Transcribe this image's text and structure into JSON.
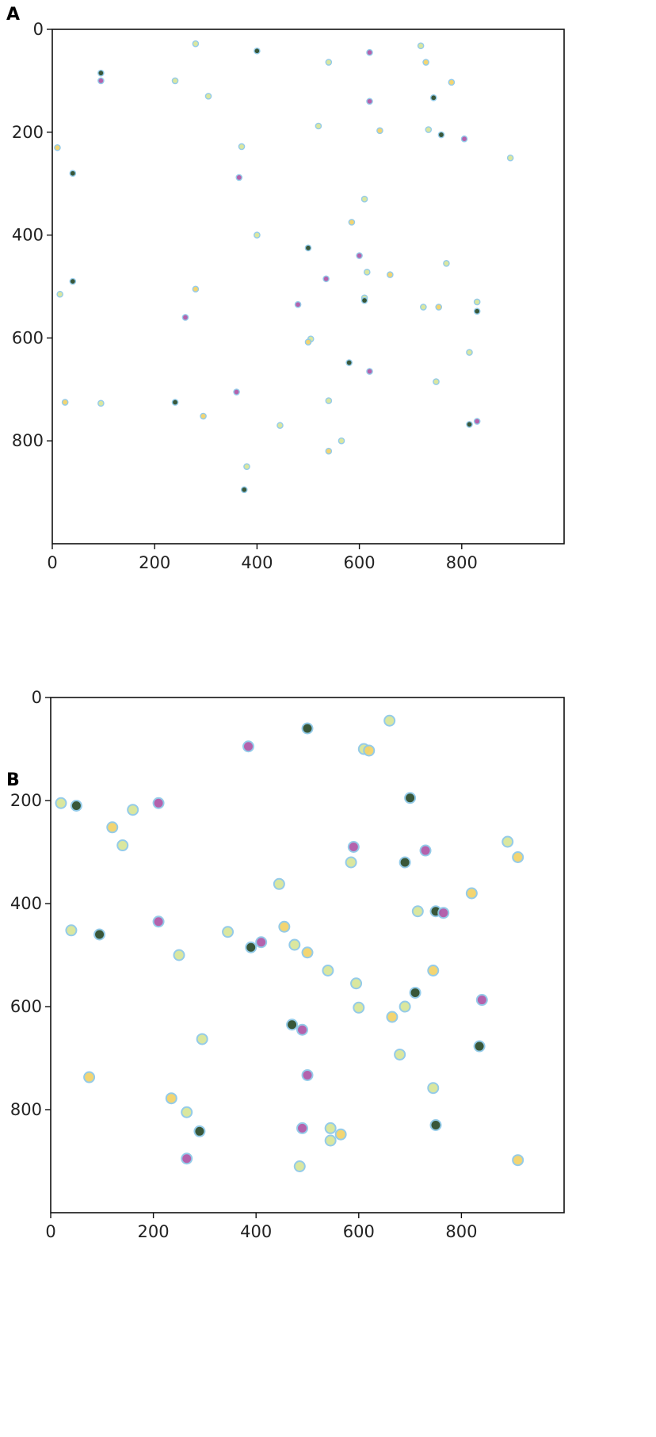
{
  "chart_data": [
    {
      "panel": "A",
      "type": "scatter",
      "title": "",
      "xlabel": "",
      "ylabel": "",
      "xlim": [
        0,
        1000
      ],
      "ylim": [
        1000,
        0
      ],
      "y_inverted": true,
      "xticks": [
        "0",
        "200",
        "400",
        "600",
        "800"
      ],
      "yticks": [
        "0",
        "200",
        "400",
        "600",
        "800"
      ],
      "grid": false,
      "points": [
        [
          280,
          28
        ],
        [
          400,
          42
        ],
        [
          620,
          45
        ],
        [
          720,
          32
        ],
        [
          730,
          64
        ],
        [
          540,
          64
        ],
        [
          95,
          85
        ],
        [
          95,
          100
        ],
        [
          240,
          100
        ],
        [
          780,
          103
        ],
        [
          305,
          130
        ],
        [
          745,
          133
        ],
        [
          620,
          140
        ],
        [
          520,
          188
        ],
        [
          640,
          197
        ],
        [
          735,
          195
        ],
        [
          760,
          205
        ],
        [
          805,
          213
        ],
        [
          895,
          250
        ],
        [
          10,
          230
        ],
        [
          370,
          228
        ],
        [
          40,
          280
        ],
        [
          365,
          288
        ],
        [
          610,
          330
        ],
        [
          585,
          375
        ],
        [
          400,
          400
        ],
        [
          500,
          425
        ],
        [
          600,
          440
        ],
        [
          615,
          472
        ],
        [
          660,
          477
        ],
        [
          770,
          455
        ],
        [
          40,
          490
        ],
        [
          535,
          485
        ],
        [
          15,
          515
        ],
        [
          280,
          505
        ],
        [
          610,
          522
        ],
        [
          610,
          527
        ],
        [
          480,
          535
        ],
        [
          725,
          540
        ],
        [
          755,
          540
        ],
        [
          830,
          530
        ],
        [
          830,
          548
        ],
        [
          260,
          560
        ],
        [
          505,
          602
        ],
        [
          500,
          608
        ],
        [
          815,
          628
        ],
        [
          580,
          648
        ],
        [
          620,
          665
        ],
        [
          750,
          685
        ],
        [
          25,
          725
        ],
        [
          95,
          727
        ],
        [
          240,
          725
        ],
        [
          360,
          705
        ],
        [
          540,
          722
        ],
        [
          295,
          752
        ],
        [
          445,
          770
        ],
        [
          815,
          768
        ],
        [
          830,
          762
        ],
        [
          565,
          800
        ],
        [
          540,
          820
        ],
        [
          380,
          850
        ],
        [
          375,
          895
        ]
      ]
    },
    {
      "panel": "B",
      "type": "scatter",
      "title": "",
      "xlabel": "",
      "ylabel": "",
      "xlim": [
        0,
        1000
      ],
      "ylim": [
        1000,
        0
      ],
      "y_inverted": true,
      "xticks": [
        "0",
        "200",
        "400",
        "600",
        "800"
      ],
      "yticks": [
        "0",
        "200",
        "400",
        "600",
        "800"
      ],
      "grid": false,
      "points": [
        [
          660,
          45
        ],
        [
          500,
          60
        ],
        [
          385,
          95
        ],
        [
          610,
          100
        ],
        [
          620,
          103
        ],
        [
          20,
          205
        ],
        [
          50,
          210
        ],
        [
          210,
          205
        ],
        [
          160,
          218
        ],
        [
          120,
          252
        ],
        [
          140,
          287
        ],
        [
          700,
          195
        ],
        [
          590,
          290
        ],
        [
          890,
          280
        ],
        [
          910,
          310
        ],
        [
          585,
          320
        ],
        [
          690,
          320
        ],
        [
          730,
          297
        ],
        [
          445,
          362
        ],
        [
          820,
          380
        ],
        [
          40,
          452
        ],
        [
          95,
          460
        ],
        [
          210,
          435
        ],
        [
          345,
          455
        ],
        [
          455,
          445
        ],
        [
          250,
          500
        ],
        [
          390,
          485
        ],
        [
          410,
          475
        ],
        [
          475,
          480
        ],
        [
          500,
          495
        ],
        [
          715,
          415
        ],
        [
          750,
          415
        ],
        [
          765,
          418
        ],
        [
          540,
          530
        ],
        [
          745,
          530
        ],
        [
          595,
          555
        ],
        [
          710,
          573
        ],
        [
          840,
          587
        ],
        [
          600,
          602
        ],
        [
          665,
          620
        ],
        [
          690,
          600
        ],
        [
          470,
          635
        ],
        [
          490,
          645
        ],
        [
          295,
          663
        ],
        [
          75,
          737
        ],
        [
          680,
          693
        ],
        [
          835,
          677
        ],
        [
          500,
          733
        ],
        [
          745,
          758
        ],
        [
          235,
          778
        ],
        [
          265,
          805
        ],
        [
          290,
          842
        ],
        [
          490,
          836
        ],
        [
          545,
          836
        ],
        [
          565,
          848
        ],
        [
          545,
          860
        ],
        [
          750,
          830
        ],
        [
          265,
          895
        ],
        [
          485,
          910
        ],
        [
          910,
          898
        ]
      ]
    }
  ],
  "panels": {
    "a": {
      "label": "A"
    },
    "b": {
      "label": "B"
    }
  },
  "colors": {
    "axis": "#111111",
    "dot_outline": "#8fc9e8",
    "dot_fill": "#d9e69a",
    "dot_dark": "#2f4f2f",
    "dot_magenta": "#b05aa8"
  }
}
